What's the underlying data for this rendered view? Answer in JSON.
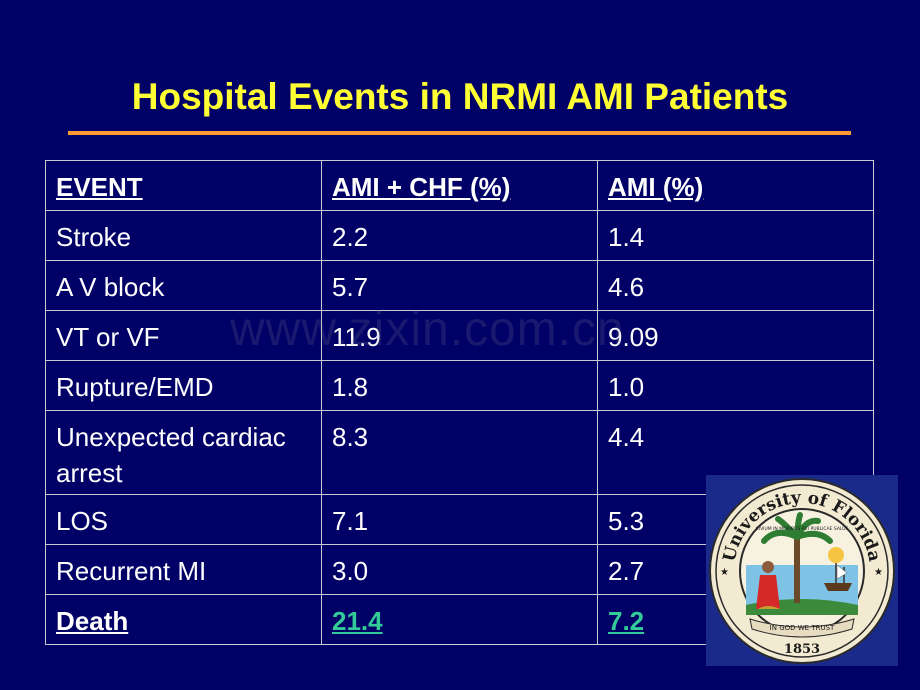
{
  "title": "Hospital Events in NRMI AMI Patients",
  "watermark": "www.zixin.com.cn",
  "table": {
    "headers": [
      "EVENT",
      "AMI + CHF (%)",
      "AMI (%)"
    ],
    "rows": [
      [
        "Stroke",
        "2.2",
        "1.4"
      ],
      [
        "A V block",
        "5.7",
        "4.6"
      ],
      [
        "VT or VF",
        "11.9",
        "9.09"
      ],
      [
        "Rupture/EMD",
        "1.8",
        "1.0"
      ],
      [
        "Unexpected cardiac arrest",
        "8.3",
        "4.4"
      ],
      [
        "LOS",
        "7.1",
        "5.3"
      ],
      [
        "Recurrent MI",
        "3.0",
        "2.7"
      ],
      [
        "Death",
        "21.4",
        "7.2"
      ]
    ]
  },
  "seal": {
    "top_text": "University of Florida",
    "motto": "CIVIUM IN MORIBUS REI PUBLICAE SALUS",
    "banner": "IN GOD WE TRUST",
    "year": "1853"
  },
  "colors": {
    "background": "#000066",
    "title": "#ffff33",
    "rule": "#ff9933",
    "highlight": "#33cc99"
  }
}
